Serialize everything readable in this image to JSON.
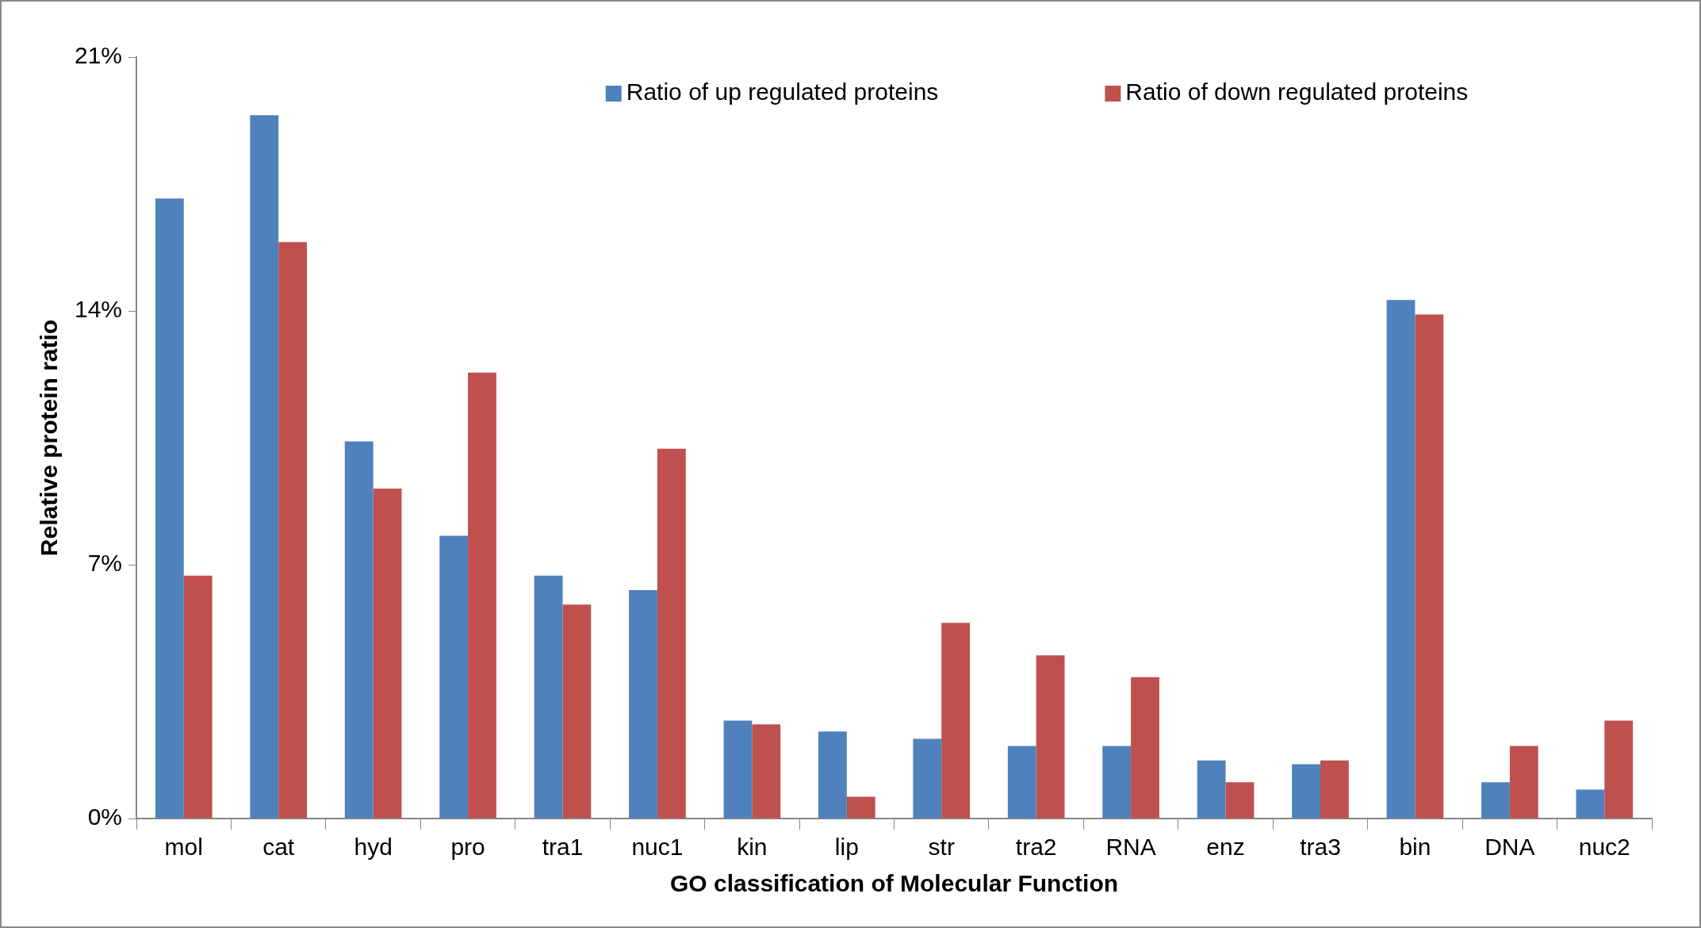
{
  "chart_data": {
    "type": "bar",
    "xlabel": "GO classification of Molecular Function",
    "ylabel": "Relative protein ratio",
    "categories": [
      "mol",
      "cat",
      "hyd",
      "pro",
      "tra1",
      "nuc1",
      "kin",
      "lip",
      "str",
      "tra2",
      "RNA",
      "enz",
      "tra3",
      "bin",
      "DNA",
      "nuc2"
    ],
    "series": [
      {
        "name": "Ratio of up regulated proteins",
        "color": "#4f81bd",
        "values": [
          17.1,
          19.4,
          10.4,
          7.8,
          6.7,
          6.3,
          2.7,
          2.4,
          2.2,
          2.0,
          2.0,
          1.6,
          1.5,
          14.3,
          1.0,
          0.8
        ]
      },
      {
        "name": "Ratio of down regulated proteins",
        "color": "#c0504d",
        "values": [
          6.7,
          15.9,
          9.1,
          12.3,
          5.9,
          10.2,
          2.6,
          0.6,
          5.4,
          4.5,
          3.9,
          1.0,
          1.6,
          13.9,
          2.0,
          2.7
        ]
      }
    ],
    "ylim": [
      0,
      21
    ],
    "yticks": [
      {
        "value": 0,
        "label": "0%"
      },
      {
        "value": 7,
        "label": "7%"
      },
      {
        "value": 14,
        "label": "14%"
      },
      {
        "value": 21,
        "label": "21%"
      }
    ],
    "grid": false,
    "legend": "top"
  }
}
